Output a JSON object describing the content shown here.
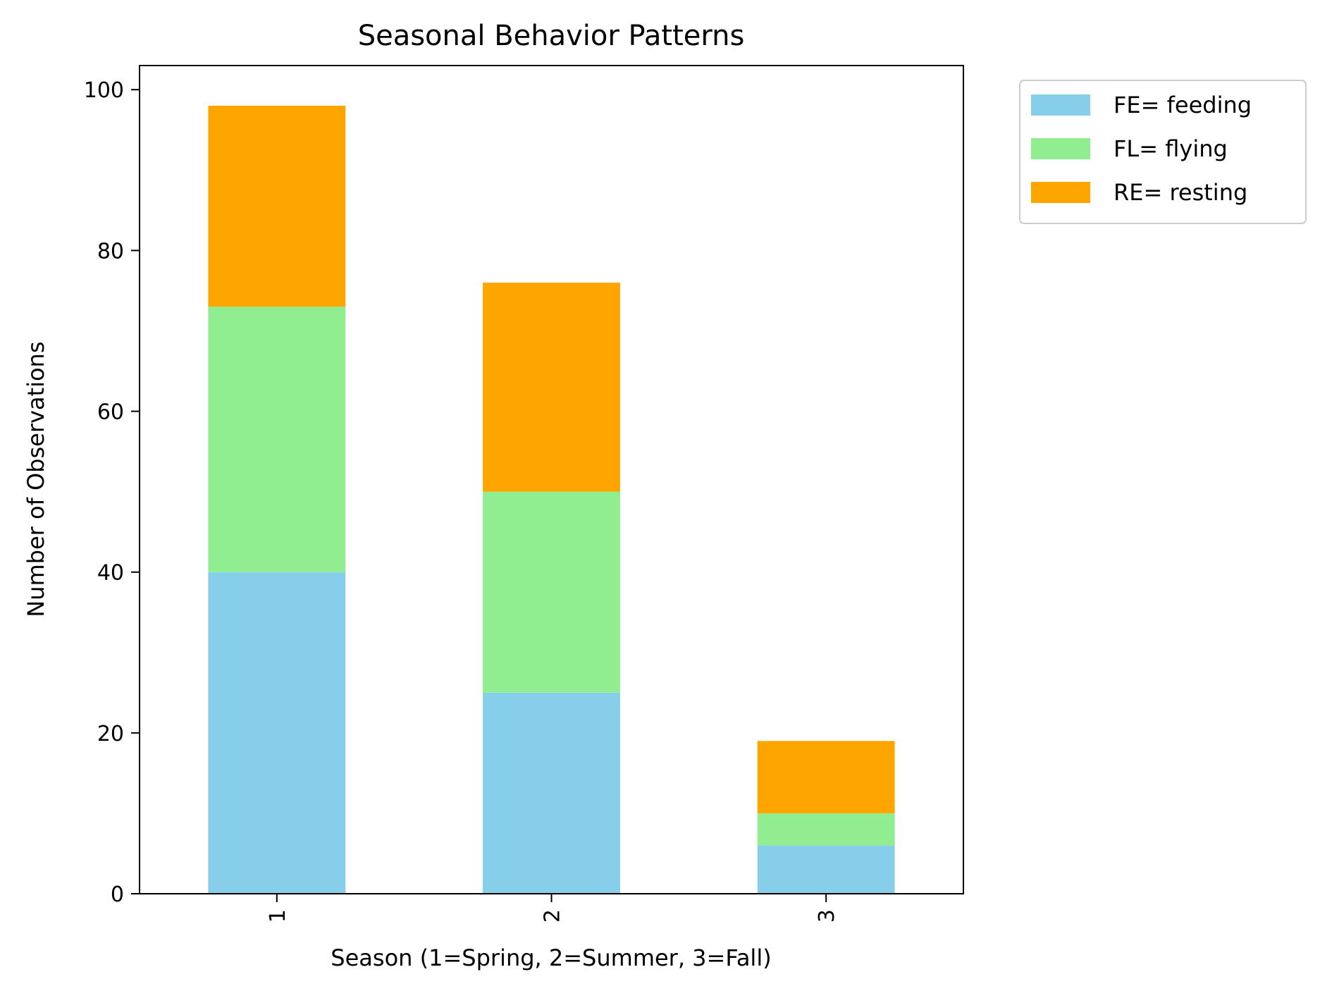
{
  "chart_data": {
    "type": "bar",
    "stacked": true,
    "title": "Seasonal Behavior Patterns",
    "xlabel": "Season (1=Spring, 2=Summer, 3=Fall)",
    "ylabel": "Number of Observations",
    "categories": [
      "1",
      "2",
      "3"
    ],
    "ylim": [
      0,
      103
    ],
    "yticks": [
      0,
      20,
      40,
      60,
      80,
      100
    ],
    "grid": false,
    "legend_position": "outside top-right",
    "series": [
      {
        "name": "FE= feeding",
        "values": [
          40,
          25,
          6
        ],
        "color": "#87CEEB"
      },
      {
        "name": "FL= flying",
        "values": [
          33,
          25,
          4
        ],
        "color": "#90EE90"
      },
      {
        "name": "RE= resting",
        "values": [
          25,
          26,
          9
        ],
        "color": "#FFA500"
      }
    ]
  }
}
